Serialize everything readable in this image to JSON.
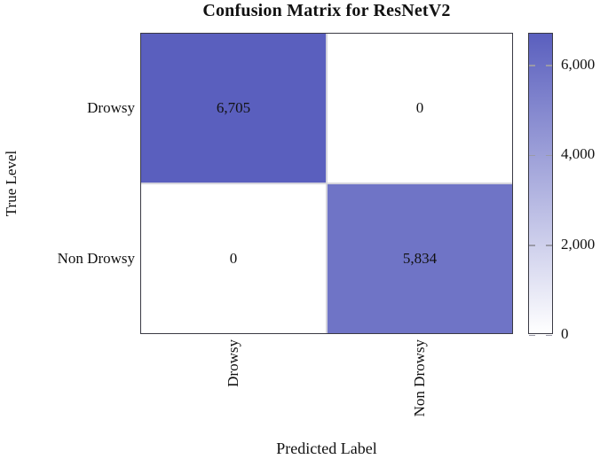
{
  "chart_data": {
    "type": "heatmap",
    "title": "Confusion Matrix for ResNetV2",
    "xlabel": "Predicted Label",
    "ylabel": "True Level",
    "x_categories": [
      "Drowsy",
      "Non Drowsy"
    ],
    "y_categories": [
      "Drowsy",
      "Non Drowsy"
    ],
    "values": [
      [
        6705,
        0
      ],
      [
        0,
        5834
      ]
    ],
    "cell_labels": [
      [
        "6,705",
        "0"
      ],
      [
        "0",
        "5,834"
      ]
    ],
    "colorbar": {
      "min": 0,
      "max": 6705,
      "ticks": [
        6000,
        4000,
        2000,
        0
      ],
      "tick_labels": [
        "6,000",
        "4,000",
        "2,000",
        "0"
      ],
      "min_color": "#ffffff",
      "max_color": "#5a5fbe"
    },
    "layout": {
      "grid": "off",
      "legend": "none",
      "colorbar_position": "right",
      "x_tick_rotation_deg": 90
    }
  },
  "colors": {
    "background": "#ffffff",
    "frame": "#3a3a44",
    "grid_line": "#d4d4dc",
    "text": "#111111",
    "colorbar_tick": "#9a9aa8"
  }
}
